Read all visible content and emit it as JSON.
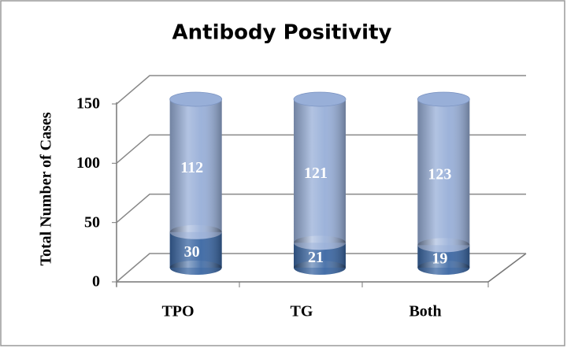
{
  "chart_data": {
    "type": "stacked-cylinder",
    "title": "Antibody Positivity",
    "y_label": "Total Number of Cases",
    "categories": [
      "TPO",
      "TG",
      "Both"
    ],
    "series": [
      {
        "color": "#3b67a3",
        "values": [
          30,
          21,
          19
        ]
      },
      {
        "color": "#98afd8",
        "values": [
          112,
          121,
          123
        ]
      }
    ],
    "ylim": [
      0,
      150
    ],
    "yticks": [
      0,
      50,
      100,
      150
    ],
    "grid": true
  }
}
